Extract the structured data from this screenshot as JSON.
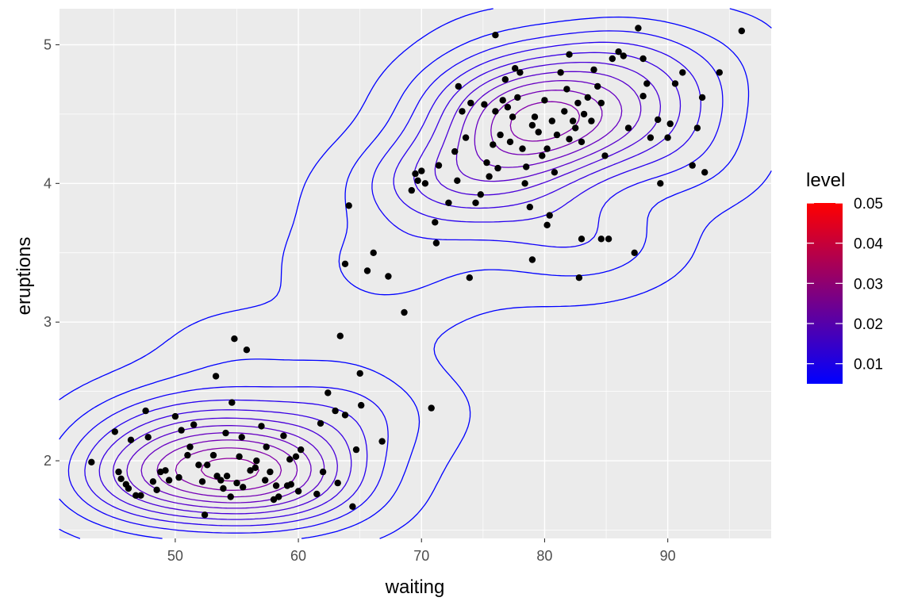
{
  "chart_data": {
    "type": "scatter",
    "subtype": "density-2d-contour",
    "xlabel": "waiting",
    "ylabel": "eruptions",
    "xlim": [
      40.6,
      98.4
    ],
    "ylim": [
      1.44,
      5.26
    ],
    "x_ticks": [
      50,
      60,
      70,
      80,
      90
    ],
    "y_ticks": [
      2,
      3,
      4,
      5
    ],
    "grid": true,
    "legend": {
      "title": "level",
      "position": "right",
      "type": "colorbar",
      "range": [
        0.005,
        0.05
      ],
      "ticks": [
        "0.01",
        "0.02",
        "0.03",
        "0.04",
        "0.05"
      ],
      "tick_values": [
        0.01,
        0.02,
        0.03,
        0.04,
        0.05
      ],
      "low_color": "#0000FF",
      "high_color": "#FF0000"
    },
    "points": [
      [
        43.2,
        1.99
      ],
      [
        45.1,
        2.21
      ],
      [
        45.4,
        1.92
      ],
      [
        45.6,
        1.87
      ],
      [
        46.0,
        1.83
      ],
      [
        46.2,
        1.8
      ],
      [
        46.4,
        2.15
      ],
      [
        46.8,
        1.75
      ],
      [
        47.2,
        1.75
      ],
      [
        47.6,
        2.36
      ],
      [
        47.8,
        2.17
      ],
      [
        48.2,
        1.85
      ],
      [
        48.5,
        1.79
      ],
      [
        48.8,
        1.92
      ],
      [
        49.2,
        1.93
      ],
      [
        49.5,
        1.86
      ],
      [
        50.0,
        2.32
      ],
      [
        50.3,
        1.88
      ],
      [
        50.5,
        2.22
      ],
      [
        51.0,
        2.04
      ],
      [
        51.2,
        2.1
      ],
      [
        51.5,
        2.26
      ],
      [
        51.9,
        1.97
      ],
      [
        52.2,
        1.85
      ],
      [
        52.4,
        1.61
      ],
      [
        52.6,
        1.97
      ],
      [
        53.1,
        2.04
      ],
      [
        53.3,
        2.61
      ],
      [
        53.4,
        1.89
      ],
      [
        53.7,
        1.86
      ],
      [
        53.9,
        1.8
      ],
      [
        54.1,
        2.2
      ],
      [
        54.2,
        1.89
      ],
      [
        54.5,
        1.74
      ],
      [
        54.6,
        2.42
      ],
      [
        54.8,
        2.88
      ],
      [
        55.0,
        1.84
      ],
      [
        55.2,
        2.03
      ],
      [
        55.4,
        2.17
      ],
      [
        55.5,
        1.81
      ],
      [
        55.8,
        2.8
      ],
      [
        56.1,
        1.93
      ],
      [
        56.5,
        1.95
      ],
      [
        56.6,
        2.0
      ],
      [
        57.0,
        2.25
      ],
      [
        57.3,
        1.86
      ],
      [
        57.4,
        2.1
      ],
      [
        57.7,
        1.92
      ],
      [
        58.0,
        1.72
      ],
      [
        58.2,
        1.82
      ],
      [
        58.4,
        1.74
      ],
      [
        58.8,
        2.18
      ],
      [
        59.1,
        1.82
      ],
      [
        59.3,
        2.01
      ],
      [
        59.4,
        1.83
      ],
      [
        59.8,
        2.03
      ],
      [
        60.0,
        1.78
      ],
      [
        60.2,
        2.08
      ],
      [
        61.5,
        1.76
      ],
      [
        61.8,
        2.27
      ],
      [
        62.0,
        1.92
      ],
      [
        62.4,
        2.49
      ],
      [
        63.0,
        2.36
      ],
      [
        63.2,
        1.84
      ],
      [
        63.4,
        2.9
      ],
      [
        63.8,
        2.33
      ],
      [
        64.1,
        3.84
      ],
      [
        64.4,
        1.67
      ],
      [
        64.7,
        2.08
      ],
      [
        65.0,
        2.63
      ],
      [
        65.1,
        2.4
      ],
      [
        63.8,
        3.42
      ],
      [
        65.6,
        3.37
      ],
      [
        66.1,
        3.5
      ],
      [
        66.8,
        2.14
      ],
      [
        67.3,
        3.33
      ],
      [
        68.6,
        3.07
      ],
      [
        69.2,
        3.95
      ],
      [
        69.5,
        4.07
      ],
      [
        69.7,
        4.02
      ],
      [
        70.0,
        4.09
      ],
      [
        70.3,
        4.0
      ],
      [
        70.8,
        2.38
      ],
      [
        71.1,
        3.72
      ],
      [
        71.2,
        3.57
      ],
      [
        71.4,
        4.13
      ],
      [
        72.2,
        3.86
      ],
      [
        72.7,
        4.23
      ],
      [
        72.9,
        4.02
      ],
      [
        73.0,
        4.7
      ],
      [
        73.3,
        4.52
      ],
      [
        73.6,
        4.33
      ],
      [
        73.9,
        3.32
      ],
      [
        74.0,
        4.58
      ],
      [
        74.4,
        3.86
      ],
      [
        74.8,
        3.92
      ],
      [
        75.1,
        4.57
      ],
      [
        75.3,
        4.15
      ],
      [
        75.5,
        4.05
      ],
      [
        75.8,
        4.28
      ],
      [
        76.0,
        4.52
      ],
      [
        76.2,
        4.11
      ],
      [
        76.4,
        4.35
      ],
      [
        76.6,
        4.6
      ],
      [
        76.8,
        4.75
      ],
      [
        77.0,
        4.55
      ],
      [
        77.2,
        4.3
      ],
      [
        77.4,
        4.48
      ],
      [
        77.6,
        4.83
      ],
      [
        77.8,
        4.62
      ],
      [
        78.0,
        4.8
      ],
      [
        78.2,
        4.25
      ],
      [
        78.4,
        4.0
      ],
      [
        78.5,
        4.12
      ],
      [
        78.8,
        3.83
      ],
      [
        79.0,
        4.42
      ],
      [
        79.2,
        4.48
      ],
      [
        79.5,
        4.37
      ],
      [
        79.8,
        4.2
      ],
      [
        80.0,
        4.6
      ],
      [
        80.2,
        4.25
      ],
      [
        80.4,
        3.77
      ],
      [
        80.6,
        4.45
      ],
      [
        80.8,
        4.08
      ],
      [
        81.0,
        4.35
      ],
      [
        81.3,
        4.8
      ],
      [
        81.6,
        4.52
      ],
      [
        81.8,
        4.68
      ],
      [
        82.0,
        4.32
      ],
      [
        82.3,
        4.45
      ],
      [
        82.5,
        4.4
      ],
      [
        82.7,
        4.58
      ],
      [
        83.0,
        4.3
      ],
      [
        83.2,
        4.5
      ],
      [
        83.5,
        4.62
      ],
      [
        83.8,
        4.45
      ],
      [
        84.0,
        4.82
      ],
      [
        84.3,
        4.7
      ],
      [
        84.6,
        4.58
      ],
      [
        84.9,
        4.2
      ],
      [
        85.2,
        3.6
      ],
      [
        85.5,
        4.9
      ],
      [
        86.0,
        4.95
      ],
      [
        86.4,
        4.92
      ],
      [
        86.8,
        4.4
      ],
      [
        87.3,
        3.5
      ],
      [
        87.6,
        5.12
      ],
      [
        88.0,
        4.9
      ],
      [
        88.0,
        4.63
      ],
      [
        88.3,
        4.72
      ],
      [
        88.6,
        4.33
      ],
      [
        89.2,
        4.46
      ],
      [
        89.4,
        4.0
      ],
      [
        90.0,
        4.33
      ],
      [
        90.2,
        4.43
      ],
      [
        90.6,
        4.72
      ],
      [
        91.2,
        4.8
      ],
      [
        92.0,
        4.13
      ],
      [
        92.4,
        4.4
      ],
      [
        92.8,
        4.62
      ],
      [
        93.0,
        4.08
      ],
      [
        94.2,
        4.8
      ],
      [
        96.0,
        5.1
      ],
      [
        76.0,
        5.07
      ],
      [
        79.0,
        3.45
      ],
      [
        80.2,
        3.7
      ],
      [
        82.8,
        3.32
      ],
      [
        83.0,
        3.6
      ],
      [
        82.0,
        4.93
      ],
      [
        84.6,
        3.6
      ]
    ]
  }
}
